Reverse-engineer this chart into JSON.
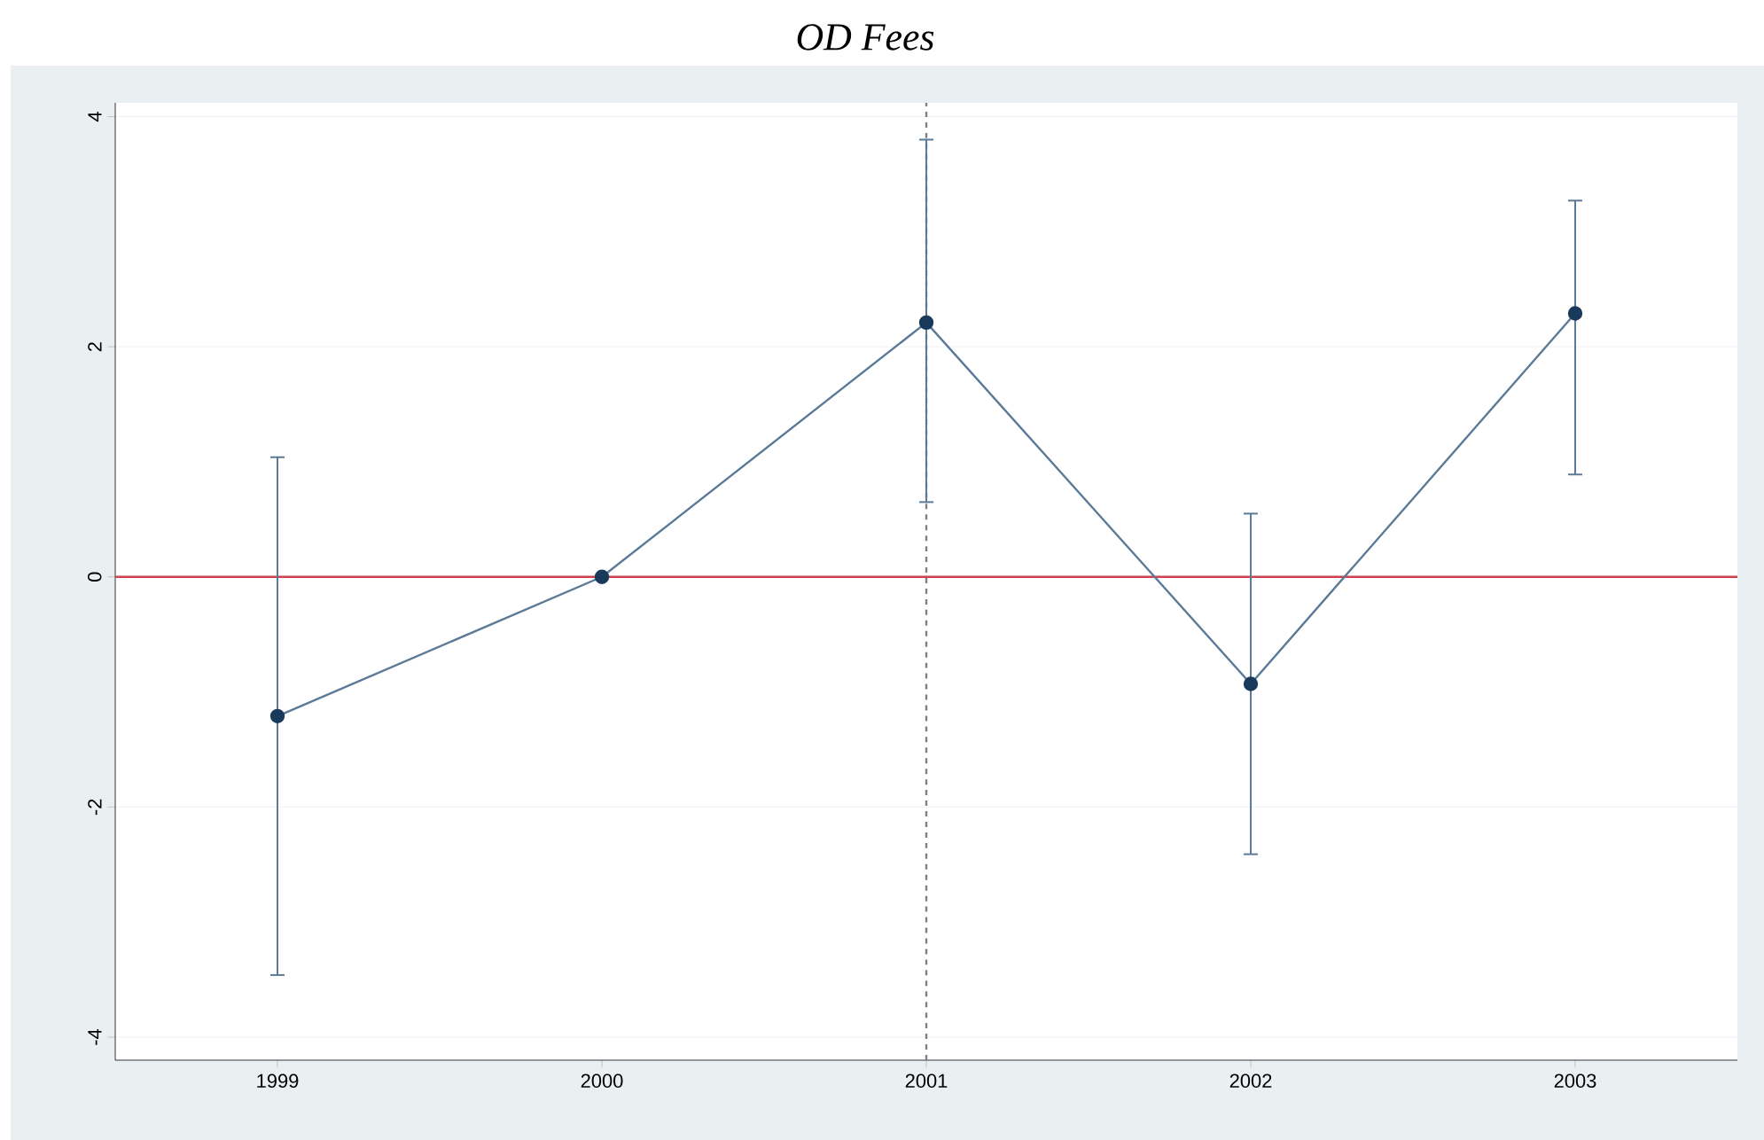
{
  "chart_data": {
    "type": "line",
    "title": "OD Fees",
    "categories": [
      "1999",
      "2000",
      "2001",
      "2002",
      "2003"
    ],
    "series": [
      {
        "color": "#5b7a97",
        "values": [
          -1.21,
          0,
          2.21,
          -0.93,
          2.29
        ],
        "errors": [
          [
            -3.46,
            1.04
          ],
          null,
          [
            0.65,
            3.8
          ],
          [
            -2.41,
            0.55
          ],
          [
            0.89,
            3.27
          ]
        ]
      }
    ],
    "marker": "circle",
    "ylim": [
      -4.2,
      4.12
    ],
    "yticks": [
      -4,
      -2,
      0,
      2,
      4
    ],
    "grid": "y",
    "ref_lines": [
      {
        "axis": "y",
        "value": 0,
        "color": "#d0404f",
        "line_style": "solid"
      },
      {
        "axis": "x",
        "value": "2001",
        "color": "#808080",
        "line_style": "dashed"
      }
    ]
  }
}
